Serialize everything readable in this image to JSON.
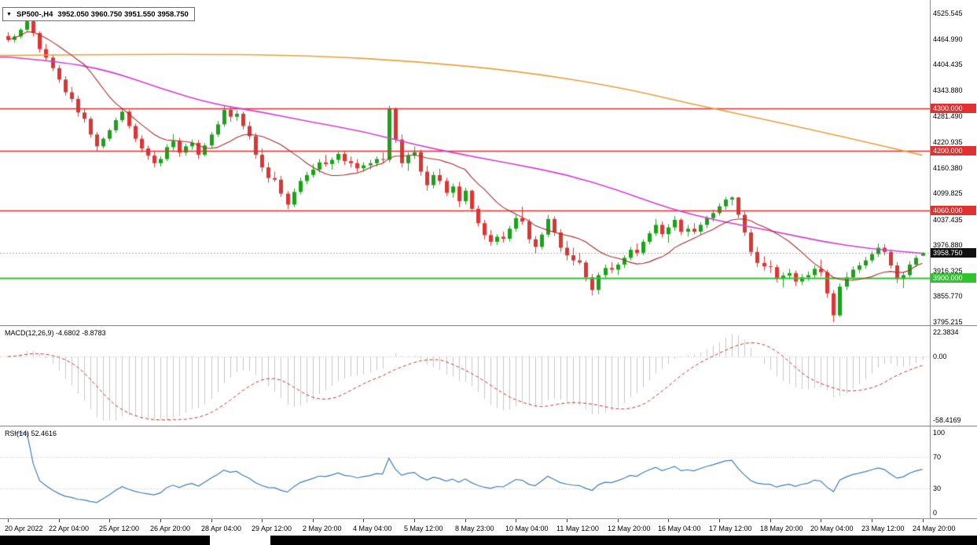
{
  "window": {
    "symbol_period": "SP500-,H4",
    "ohlc_text": "3952.050 3960.750 3951.550 3958.750",
    "collapse_arrow": "▼"
  },
  "colors": {
    "candle_up": "#1aa31a",
    "candle_down": "#dd3434",
    "ma_slow": "#e6a23c",
    "ma_medium": "#d23fd2",
    "ma_fast": "#aa2e2e",
    "level_red": "#e03030",
    "level_green": "#2fc42f",
    "current_price_badge": "#111111",
    "macd_hist": "#c9c9c9",
    "macd_signal": "#d03030",
    "rsi_line": "#3f7db8",
    "grid_dotted": "#c8c8c8",
    "current_price_line": "#aaaaaa",
    "axis_text": "#000000"
  },
  "chart_data": {
    "type": "candlestick",
    "symbol": "SP500-",
    "timeframe": "H4",
    "price_panel": {
      "ylim": [
        3787.8,
        4557.3
      ],
      "y_axis_labels": [
        "4525.545",
        "4464.990",
        "4404.435",
        "4343.880",
        "4281.490",
        "4220.935",
        "4160.380",
        "4099.825",
        "4037.435",
        "3976.880",
        "3916.325",
        "3855.770",
        "3795.215"
      ],
      "levels": [
        {
          "price": 4300.0,
          "label": "4300.000",
          "color_key": "level_red"
        },
        {
          "price": 4200.0,
          "label": "4200.000",
          "color_key": "level_red"
        },
        {
          "price": 4060.0,
          "label": "4060.000",
          "color_key": "level_red"
        },
        {
          "price": 3900.0,
          "label": "3900.000",
          "color_key": "level_green"
        }
      ],
      "current_price": {
        "value": 3958.75,
        "label": "3958.750"
      },
      "ma_fast_period": 13,
      "ma_slow_points": [
        [
          0,
          4426
        ],
        [
          24,
          4430
        ],
        [
          48,
          4426
        ],
        [
          64,
          4412
        ],
        [
          80,
          4390
        ],
        [
          96,
          4352
        ],
        [
          108,
          4310
        ],
        [
          120,
          4272
        ],
        [
          132,
          4232
        ],
        [
          144,
          4190
        ]
      ],
      "ma_medium_points": [
        [
          0,
          4422
        ],
        [
          8,
          4412
        ],
        [
          16,
          4390
        ],
        [
          24,
          4348
        ],
        [
          32,
          4312
        ],
        [
          40,
          4292
        ],
        [
          48,
          4268
        ],
        [
          56,
          4246
        ],
        [
          64,
          4215
        ],
        [
          72,
          4190
        ],
        [
          80,
          4168
        ],
        [
          88,
          4144
        ],
        [
          96,
          4108
        ],
        [
          104,
          4064
        ],
        [
          112,
          4034
        ],
        [
          120,
          4012
        ],
        [
          128,
          3986
        ],
        [
          136,
          3968
        ],
        [
          144,
          3958
        ]
      ],
      "candles": [
        [
          4472,
          4481,
          4458,
          4463
        ],
        [
          4463,
          4476,
          4456,
          4471
        ],
        [
          4471,
          4491,
          4466,
          4487
        ],
        [
          4487,
          4512,
          4482,
          4507
        ],
        [
          4507,
          4510,
          4471,
          4479
        ],
        [
          4479,
          4483,
          4433,
          4441
        ],
        [
          4441,
          4453,
          4413,
          4421
        ],
        [
          4421,
          4429,
          4389,
          4396
        ],
        [
          4396,
          4403,
          4361,
          4369
        ],
        [
          4369,
          4377,
          4331,
          4339
        ],
        [
          4339,
          4351,
          4315,
          4323
        ],
        [
          4323,
          4331,
          4281,
          4291
        ],
        [
          4291,
          4301,
          4267,
          4276
        ],
        [
          4276,
          4281,
          4231,
          4239
        ],
        [
          4239,
          4245,
          4200,
          4211
        ],
        [
          4211,
          4233,
          4206,
          4229
        ],
        [
          4229,
          4253,
          4223,
          4249
        ],
        [
          4249,
          4279,
          4243,
          4273
        ],
        [
          4273,
          4299,
          4267,
          4293
        ],
        [
          4293,
          4297,
          4253,
          4259
        ],
        [
          4259,
          4265,
          4221,
          4229
        ],
        [
          4229,
          4237,
          4197,
          4206
        ],
        [
          4206,
          4213,
          4179,
          4189
        ],
        [
          4189,
          4199,
          4161,
          4171
        ],
        [
          4171,
          4187,
          4163,
          4181
        ],
        [
          4181,
          4216,
          4176,
          4209
        ],
        [
          4209,
          4240,
          4201,
          4223
        ],
        [
          4223,
          4231,
          4186,
          4196
        ],
        [
          4196,
          4217,
          4189,
          4211
        ],
        [
          4211,
          4227,
          4203,
          4219
        ],
        [
          4219,
          4226,
          4181,
          4191
        ],
        [
          4191,
          4219,
          4187,
          4213
        ],
        [
          4213,
          4245,
          4207,
          4239
        ],
        [
          4239,
          4271,
          4233,
          4263
        ],
        [
          4263,
          4308,
          4257,
          4297
        ],
        [
          4297,
          4305,
          4269,
          4281
        ],
        [
          4281,
          4296,
          4271,
          4288
        ],
        [
          4288,
          4293,
          4251,
          4259
        ],
        [
          4259,
          4270,
          4227,
          4235
        ],
        [
          4235,
          4243,
          4181,
          4191
        ],
        [
          4191,
          4206,
          4151,
          4161
        ],
        [
          4161,
          4173,
          4125,
          4136
        ],
        [
          4136,
          4151,
          4127,
          4132
        ],
        [
          4132,
          4141,
          4091,
          4099
        ],
        [
          4099,
          4105,
          4062,
          4073
        ],
        [
          4073,
          4111,
          4067,
          4103
        ],
        [
          4103,
          4137,
          4097,
          4129
        ],
        [
          4129,
          4151,
          4121,
          4143
        ],
        [
          4143,
          4169,
          4137,
          4156
        ],
        [
          4156,
          4181,
          4149,
          4173
        ],
        [
          4173,
          4191,
          4163,
          4169
        ],
        [
          4169,
          4185,
          4156,
          4179
        ],
        [
          4179,
          4200,
          4171,
          4193
        ],
        [
          4193,
          4199,
          4167,
          4176
        ],
        [
          4176,
          4187,
          4161,
          4171
        ],
        [
          4171,
          4181,
          4149,
          4159
        ],
        [
          4159,
          4173,
          4151,
          4166
        ],
        [
          4166,
          4179,
          4156,
          4171
        ],
        [
          4171,
          4187,
          4163,
          4181
        ],
        [
          4181,
          4197,
          4171,
          4179
        ],
        [
          4179,
          4307,
          4173,
          4300
        ],
        [
          4300,
          4303,
          4219,
          4227
        ],
        [
          4227,
          4239,
          4161,
          4171
        ],
        [
          4171,
          4197,
          4153,
          4189
        ],
        [
          4189,
          4211,
          4181,
          4197
        ],
        [
          4197,
          4203,
          4141,
          4151
        ],
        [
          4151,
          4165,
          4106,
          4119
        ],
        [
          4119,
          4151,
          4111,
          4143
        ],
        [
          4143,
          4158,
          4121,
          4129
        ],
        [
          4129,
          4137,
          4093,
          4101
        ],
        [
          4101,
          4123,
          4089,
          4116
        ],
        [
          4116,
          4127,
          4067,
          4081
        ],
        [
          4081,
          4113,
          4073,
          4106
        ],
        [
          4106,
          4109,
          4056,
          4063
        ],
        [
          4063,
          4071,
          4021,
          4029
        ],
        [
          4029,
          4037,
          3991,
          4001
        ],
        [
          4001,
          4013,
          3976,
          3985
        ],
        [
          3985,
          4003,
          3977,
          3997
        ],
        [
          3997,
          4009,
          3983,
          3992
        ],
        [
          3992,
          4023,
          3986,
          4016
        ],
        [
          4016,
          4049,
          4009,
          4041
        ],
        [
          4041,
          4068,
          4025,
          4033
        ],
        [
          4033,
          4039,
          3981,
          3991
        ],
        [
          3991,
          3999,
          3958,
          3973
        ],
        [
          3973,
          4007,
          3967,
          4002
        ],
        [
          4002,
          4049,
          3996,
          4039
        ],
        [
          4039,
          4045,
          3999,
          4007
        ],
        [
          4007,
          4015,
          3961,
          3971
        ],
        [
          3971,
          3987,
          3941,
          3953
        ],
        [
          3953,
          3971,
          3929,
          3941
        ],
        [
          3941,
          3959,
          3931,
          3936
        ],
        [
          3936,
          3941,
          3891,
          3901
        ],
        [
          3901,
          3909,
          3858,
          3871
        ],
        [
          3871,
          3913,
          3861,
          3906
        ],
        [
          3906,
          3931,
          3897,
          3923
        ],
        [
          3923,
          3937,
          3911,
          3919
        ],
        [
          3919,
          3936,
          3906,
          3931
        ],
        [
          3931,
          3953,
          3923,
          3947
        ],
        [
          3947,
          3973,
          3941,
          3966
        ],
        [
          3966,
          3981,
          3951,
          3959
        ],
        [
          3959,
          3991,
          3953,
          3985
        ],
        [
          3985,
          4011,
          3979,
          4005
        ],
        [
          4005,
          4039,
          3999,
          4025
        ],
        [
          4025,
          4033,
          3995,
          4003
        ],
        [
          4003,
          4027,
          3983,
          4019
        ],
        [
          4019,
          4046,
          4011,
          4037
        ],
        [
          4037,
          4041,
          4001,
          4009
        ],
        [
          4009,
          4025,
          3997,
          4016
        ],
        [
          4016,
          4029,
          4003,
          4009
        ],
        [
          4009,
          4031,
          4001,
          4025
        ],
        [
          4025,
          4047,
          4017,
          4041
        ],
        [
          4041,
          4061,
          4033,
          4053
        ],
        [
          4053,
          4076,
          4047,
          4069
        ],
        [
          4069,
          4091,
          4061,
          4085
        ],
        [
          4085,
          4093,
          4071,
          4090
        ],
        [
          4090,
          4091,
          4041,
          4049
        ],
        [
          4049,
          4057,
          3999,
          4007
        ],
        [
          4007,
          4015,
          3951,
          3961
        ],
        [
          3961,
          3973,
          3925,
          3935
        ],
        [
          3935,
          3951,
          3917,
          3927
        ],
        [
          3927,
          3941,
          3911,
          3925
        ],
        [
          3925,
          3931,
          3889,
          3897
        ],
        [
          3897,
          3913,
          3877,
          3905
        ],
        [
          3905,
          3921,
          3896,
          3911
        ],
        [
          3911,
          3917,
          3881,
          3891
        ],
        [
          3891,
          3909,
          3883,
          3901
        ],
        [
          3901,
          3915,
          3893,
          3906
        ],
        [
          3906,
          3929,
          3899,
          3921
        ],
        [
          3921,
          3943,
          3903,
          3913
        ],
        [
          3913,
          3919,
          3853,
          3863
        ],
        [
          3863,
          3871,
          3795,
          3811
        ],
        [
          3811,
          3887,
          3807,
          3879
        ],
        [
          3879,
          3913,
          3871,
          3901
        ],
        [
          3901,
          3927,
          3895,
          3919
        ],
        [
          3919,
          3937,
          3911,
          3929
        ],
        [
          3929,
          3949,
          3921,
          3941
        ],
        [
          3941,
          3963,
          3935,
          3956
        ],
        [
          3956,
          3981,
          3949,
          3971
        ],
        [
          3971,
          3979,
          3953,
          3961
        ],
        [
          3961,
          3967,
          3921,
          3929
        ],
        [
          3929,
          3937,
          3887,
          3897
        ],
        [
          3897,
          3913,
          3875,
          3906
        ],
        [
          3906,
          3939,
          3901,
          3931
        ],
        [
          3931,
          3953,
          3925,
          3947
        ],
        [
          3952.05,
          3960.75,
          3951.55,
          3958.75
        ]
      ]
    },
    "macd_panel": {
      "label": "MACD(12,26,9)",
      "values_text": "-4.6802 -8.8783",
      "fast": 12,
      "slow": 26,
      "signal": 9,
      "ylim": [
        -58.4169,
        22.3834
      ],
      "axis_labels": [
        "22.3834",
        "0.00",
        "-58.4169"
      ]
    },
    "rsi_panel": {
      "label": "RSI(14)",
      "value_text": "52.4616",
      "period": 14,
      "ylim": [
        0,
        100
      ],
      "guide_levels": [
        70,
        30
      ],
      "axis_labels": [
        "100",
        "70",
        "30",
        "0"
      ]
    },
    "x_axis": {
      "labels": [
        {
          "text": "20 Apr 2022",
          "idx": 0
        },
        {
          "text": "22 Apr 04:00",
          "idx": 8
        },
        {
          "text": "25 Apr 12:00",
          "idx": 16
        },
        {
          "text": "26 Apr 20:00",
          "idx": 24
        },
        {
          "text": "28 Apr 04:00",
          "idx": 32
        },
        {
          "text": "29 Apr 12:00",
          "idx": 40
        },
        {
          "text": "2 May 20:00",
          "idx": 48
        },
        {
          "text": "4 May 04:00",
          "idx": 56
        },
        {
          "text": "5 May 12:00",
          "idx": 64
        },
        {
          "text": "8 May 23:00",
          "idx": 72
        },
        {
          "text": "10 May 04:00",
          "idx": 80
        },
        {
          "text": "11 May 12:00",
          "idx": 88
        },
        {
          "text": "12 May 20:00",
          "idx": 96
        },
        {
          "text": "16 May 04:00",
          "idx": 104
        },
        {
          "text": "17 May 12:00",
          "idx": 112
        },
        {
          "text": "18 May 20:00",
          "idx": 120
        },
        {
          "text": "20 May 04:00",
          "idx": 128
        },
        {
          "text": "23 May 12:00",
          "idx": 136
        },
        {
          "text": "24 May 20:00",
          "idx": 144
        }
      ]
    }
  }
}
